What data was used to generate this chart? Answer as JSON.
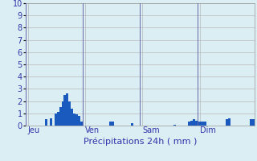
{
  "title": "Précipitations 24h ( mm )",
  "bg_color": "#daeef3",
  "bar_color": "#1a5abf",
  "grid_color": "#b8b8b8",
  "day_line_color": "#6666aa",
  "ylim": [
    0,
    10
  ],
  "yticks": [
    0,
    1,
    2,
    3,
    4,
    5,
    6,
    7,
    8,
    9,
    10
  ],
  "total_bars": 96,
  "day_labels": [
    "Jeu",
    "Ven",
    "Sam",
    "Dim"
  ],
  "day_positions": [
    0,
    24,
    48,
    72
  ],
  "values": [
    0.0,
    0.0,
    0.0,
    0.0,
    0.0,
    0.0,
    0.0,
    0.0,
    0.5,
    0.0,
    0.6,
    0.0,
    1.0,
    1.1,
    1.5,
    2.0,
    2.5,
    2.6,
    2.0,
    1.4,
    1.0,
    0.9,
    0.8,
    0.3,
    0.0,
    0.0,
    0.0,
    0.0,
    0.0,
    0.0,
    0.0,
    0.0,
    0.0,
    0.0,
    0.0,
    0.3,
    0.3,
    0.0,
    0.0,
    0.0,
    0.0,
    0.0,
    0.0,
    0.0,
    0.2,
    0.0,
    0.0,
    0.0,
    0.0,
    0.0,
    0.0,
    0.0,
    0.0,
    0.0,
    0.0,
    0.0,
    0.0,
    0.0,
    0.0,
    0.0,
    0.0,
    0.0,
    0.05,
    0.0,
    0.0,
    0.0,
    0.0,
    0.0,
    0.3,
    0.4,
    0.5,
    0.4,
    0.35,
    0.3,
    0.3,
    0.3,
    0.0,
    0.0,
    0.0,
    0.0,
    0.0,
    0.0,
    0.0,
    0.0,
    0.5,
    0.6,
    0.0,
    0.0,
    0.0,
    0.0,
    0.0,
    0.0,
    0.0,
    0.0,
    0.5,
    0.5
  ],
  "label_color": "#3333aa",
  "tick_fontsize": 7,
  "xlabel_fontsize": 8
}
